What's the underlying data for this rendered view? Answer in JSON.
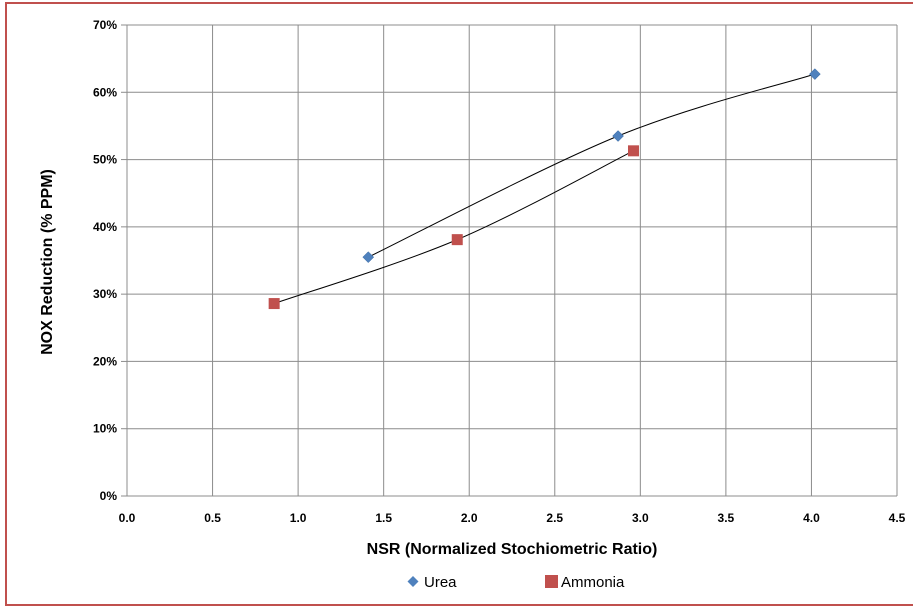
{
  "chart_data": {
    "type": "scatter",
    "xlabel": "NSR (Normalized Stochiometric Ratio)",
    "ylabel": "NOX Reduction (% PPM)",
    "xlim": [
      0,
      4.5
    ],
    "ylim": [
      0,
      0.7
    ],
    "x_ticks": [
      "0.0",
      "0.5",
      "1.0",
      "1.5",
      "2.0",
      "2.5",
      "3.0",
      "3.5",
      "4.0",
      "4.5"
    ],
    "y_ticks": [
      "0%",
      "10%",
      "20%",
      "30%",
      "40%",
      "50%",
      "60%",
      "70%"
    ],
    "grid": true,
    "legend_position": "bottom",
    "trendline": "smooth curve through each series",
    "series": [
      {
        "name": "Urea",
        "marker": "diamond",
        "color": "#4f81bd",
        "points": [
          {
            "x": 1.41,
            "y": 0.355
          },
          {
            "x": 2.87,
            "y": 0.535
          },
          {
            "x": 4.02,
            "y": 0.627
          }
        ]
      },
      {
        "name": "Ammonia",
        "marker": "square",
        "color": "#c0504d",
        "points": [
          {
            "x": 0.86,
            "y": 0.286
          },
          {
            "x": 1.93,
            "y": 0.381
          },
          {
            "x": 2.96,
            "y": 0.513
          }
        ]
      }
    ]
  }
}
